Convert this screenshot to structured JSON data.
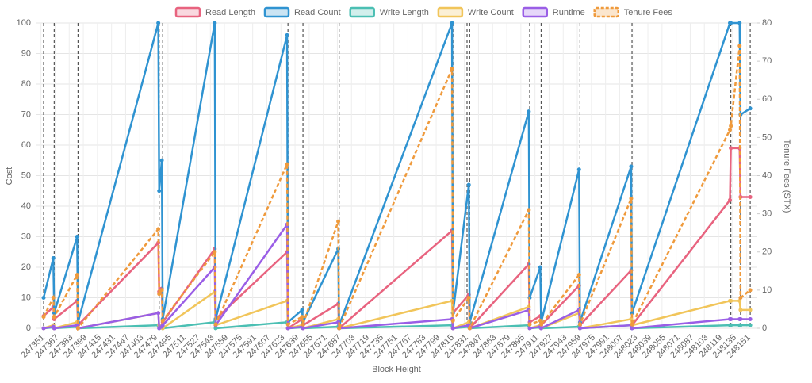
{
  "chart_data": {
    "type": "line",
    "x_label": "Block Height",
    "y_label": "Cost",
    "y2_label": "Tenure Fees (STX)",
    "x": [
      247354,
      247365,
      247366,
      247392,
      247393,
      247484,
      247485,
      247488,
      247489,
      247548,
      247549,
      247630,
      247631,
      247647,
      247648,
      247688,
      247689,
      247817,
      247818,
      247836,
      247837,
      247904,
      247905,
      247917,
      247918,
      247961,
      247962,
      248020,
      248021,
      248132,
      248133,
      248143,
      248144,
      248155
    ],
    "xlim": [
      247345,
      248163
    ],
    "xticks": [
      247351,
      247367,
      247383,
      247399,
      247415,
      247431,
      247447,
      247463,
      247479,
      247495,
      247511,
      247527,
      247543,
      247559,
      247575,
      247591,
      247607,
      247623,
      247639,
      247655,
      247671,
      247687,
      247703,
      247719,
      247735,
      247751,
      247767,
      247783,
      247799,
      247815,
      247831,
      247847,
      247863,
      247879,
      247895,
      247911,
      247927,
      247943,
      247959,
      247975,
      247991,
      248007,
      248023,
      248039,
      248055,
      248071,
      248087,
      248103,
      248119,
      248135,
      248151
    ],
    "ylim": [
      0,
      100
    ],
    "yticks": [
      0,
      10,
      20,
      30,
      40,
      50,
      60,
      70,
      80,
      90,
      100
    ],
    "y2lim": [
      0,
      80
    ],
    "y2ticks": [
      0,
      10,
      20,
      30,
      40,
      50,
      60,
      70,
      80
    ],
    "grid": true,
    "legend": "top",
    "tenure_boundaries": [
      247354,
      247366,
      247393,
      247485,
      247489,
      247549,
      247631,
      247648,
      247689,
      247818,
      247834,
      247837,
      247905,
      247918,
      247962,
      248021,
      248133,
      248144,
      248155
    ],
    "series": [
      {
        "name": "Read Length",
        "color": "#e8637f",
        "values": [
          4,
          7,
          3,
          9,
          1,
          28,
          12,
          13,
          2,
          26,
          3,
          25,
          0,
          3,
          1,
          8,
          0,
          32,
          5,
          11,
          0,
          21,
          2,
          4,
          1,
          14,
          1,
          19,
          1,
          42,
          59,
          59,
          43,
          43
        ]
      },
      {
        "name": "Read Count",
        "color": "#2f93d1",
        "values": [
          10,
          23,
          5,
          30,
          2,
          100,
          45,
          55,
          3,
          100,
          3,
          96,
          2,
          6,
          2,
          26,
          1,
          100,
          5,
          47,
          2,
          71,
          10,
          20,
          2,
          52,
          2,
          53,
          5,
          100,
          100,
          100,
          70,
          72
        ]
      },
      {
        "name": "Write Length",
        "color": "#4bbfb3",
        "values": [
          0,
          0.3,
          0,
          0.5,
          0,
          1,
          0,
          0.5,
          0,
          2,
          0,
          2,
          0,
          0.3,
          0,
          0.5,
          0,
          1,
          0,
          0.5,
          0,
          1,
          0,
          0.3,
          0,
          0.5,
          0,
          1,
          0,
          1,
          1,
          1,
          1,
          1
        ]
      },
      {
        "name": "Write Count",
        "color": "#f1c55a",
        "values": [
          0,
          1,
          0,
          2,
          0,
          5,
          1,
          1,
          0,
          12,
          1,
          9,
          0,
          1,
          0,
          3,
          0,
          9,
          0,
          2,
          0,
          7,
          0,
          1,
          0,
          5,
          0,
          3,
          1,
          9,
          9,
          9,
          6,
          6
        ]
      },
      {
        "name": "Runtime",
        "color": "#9a5ee6",
        "values": [
          0,
          0.5,
          0,
          1,
          0,
          5,
          0,
          0.5,
          1,
          20,
          1,
          34,
          0,
          0.5,
          0,
          2,
          0,
          3,
          0,
          1,
          0,
          6,
          0,
          0.5,
          0,
          6,
          0,
          1,
          0,
          3,
          3,
          3,
          3,
          3
        ]
      },
      {
        "name": "Tenure Fees",
        "color": "#ef9a3c",
        "axis": "y2",
        "dashed": true,
        "values": [
          3,
          8,
          3,
          14,
          0,
          26,
          9,
          10,
          2,
          20,
          1,
          43,
          1,
          3,
          1,
          28,
          0,
          68,
          2,
          8,
          0,
          31,
          1,
          2,
          1,
          14,
          1,
          34,
          1,
          52,
          53,
          74,
          8,
          10
        ]
      }
    ]
  }
}
